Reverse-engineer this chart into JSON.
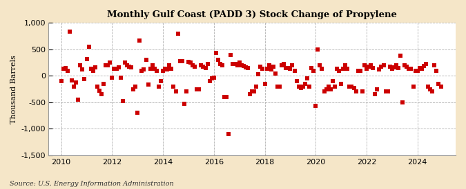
{
  "title": "Monthly Gulf Coast (PADD 3) Stock Change of Propylene",
  "ylabel": "Thousand Barrels",
  "source": "Source: U.S. Energy Information Administration",
  "background_color": "#f5e6c8",
  "plot_bg_color": "#ffffff",
  "marker_color": "#cc0000",
  "marker": "s",
  "marker_size": 4,
  "ylim": [
    -1500,
    1000
  ],
  "yticks": [
    -1500,
    -1000,
    -500,
    0,
    500,
    1000
  ],
  "xlim_start": 2009.5,
  "xlim_end": 2025.5,
  "xticks": [
    2010,
    2012,
    2014,
    2016,
    2018,
    2020,
    2022,
    2024
  ],
  "data": [
    [
      2010.0,
      -100
    ],
    [
      2010.083,
      130
    ],
    [
      2010.167,
      150
    ],
    [
      2010.25,
      100
    ],
    [
      2010.333,
      830
    ],
    [
      2010.417,
      -80
    ],
    [
      2010.5,
      -200
    ],
    [
      2010.583,
      -130
    ],
    [
      2010.667,
      -450
    ],
    [
      2010.75,
      200
    ],
    [
      2010.833,
      120
    ],
    [
      2010.917,
      -60
    ],
    [
      2011.0,
      310
    ],
    [
      2011.083,
      550
    ],
    [
      2011.167,
      130
    ],
    [
      2011.25,
      100
    ],
    [
      2011.333,
      160
    ],
    [
      2011.417,
      -200
    ],
    [
      2011.5,
      -280
    ],
    [
      2011.583,
      -350
    ],
    [
      2011.667,
      -150
    ],
    [
      2011.75,
      200
    ],
    [
      2011.833,
      200
    ],
    [
      2011.917,
      250
    ],
    [
      2012.0,
      -30
    ],
    [
      2012.083,
      130
    ],
    [
      2012.167,
      130
    ],
    [
      2012.25,
      160
    ],
    [
      2012.333,
      -40
    ],
    [
      2012.417,
      -470
    ],
    [
      2012.5,
      250
    ],
    [
      2012.583,
      200
    ],
    [
      2012.667,
      170
    ],
    [
      2012.75,
      160
    ],
    [
      2012.833,
      -250
    ],
    [
      2012.917,
      -200
    ],
    [
      2013.0,
      -700
    ],
    [
      2013.083,
      670
    ],
    [
      2013.167,
      100
    ],
    [
      2013.25,
      120
    ],
    [
      2013.333,
      300
    ],
    [
      2013.417,
      -170
    ],
    [
      2013.5,
      130
    ],
    [
      2013.583,
      200
    ],
    [
      2013.667,
      130
    ],
    [
      2013.75,
      100
    ],
    [
      2013.833,
      -200
    ],
    [
      2013.917,
      -100
    ],
    [
      2014.0,
      100
    ],
    [
      2014.083,
      130
    ],
    [
      2014.167,
      120
    ],
    [
      2014.25,
      200
    ],
    [
      2014.333,
      130
    ],
    [
      2014.417,
      -200
    ],
    [
      2014.5,
      -300
    ],
    [
      2014.583,
      800
    ],
    [
      2014.667,
      280
    ],
    [
      2014.75,
      280
    ],
    [
      2014.833,
      -530
    ],
    [
      2014.917,
      -300
    ],
    [
      2015.0,
      270
    ],
    [
      2015.083,
      250
    ],
    [
      2015.167,
      200
    ],
    [
      2015.25,
      170
    ],
    [
      2015.333,
      -250
    ],
    [
      2015.417,
      -250
    ],
    [
      2015.5,
      200
    ],
    [
      2015.583,
      170
    ],
    [
      2015.667,
      150
    ],
    [
      2015.75,
      230
    ],
    [
      2015.833,
      -100
    ],
    [
      2015.917,
      -50
    ],
    [
      2016.0,
      -30
    ],
    [
      2016.083,
      430
    ],
    [
      2016.167,
      300
    ],
    [
      2016.25,
      230
    ],
    [
      2016.333,
      200
    ],
    [
      2016.417,
      -400
    ],
    [
      2016.5,
      -400
    ],
    [
      2016.583,
      -1100
    ],
    [
      2016.667,
      400
    ],
    [
      2016.75,
      230
    ],
    [
      2016.833,
      220
    ],
    [
      2016.917,
      200
    ],
    [
      2017.0,
      250
    ],
    [
      2017.083,
      200
    ],
    [
      2017.167,
      180
    ],
    [
      2017.25,
      160
    ],
    [
      2017.333,
      150
    ],
    [
      2017.417,
      -350
    ],
    [
      2017.5,
      -300
    ],
    [
      2017.583,
      -300
    ],
    [
      2017.667,
      -200
    ],
    [
      2017.75,
      30
    ],
    [
      2017.833,
      170
    ],
    [
      2017.917,
      130
    ],
    [
      2018.0,
      -150
    ],
    [
      2018.083,
      130
    ],
    [
      2018.167,
      200
    ],
    [
      2018.25,
      120
    ],
    [
      2018.333,
      170
    ],
    [
      2018.417,
      50
    ],
    [
      2018.5,
      -200
    ],
    [
      2018.583,
      -200
    ],
    [
      2018.667,
      200
    ],
    [
      2018.75,
      230
    ],
    [
      2018.833,
      150
    ],
    [
      2018.917,
      150
    ],
    [
      2019.0,
      130
    ],
    [
      2019.083,
      200
    ],
    [
      2019.167,
      100
    ],
    [
      2019.25,
      -100
    ],
    [
      2019.333,
      -200
    ],
    [
      2019.417,
      -230
    ],
    [
      2019.5,
      -200
    ],
    [
      2019.583,
      -150
    ],
    [
      2019.667,
      -50
    ],
    [
      2019.75,
      -200
    ],
    [
      2019.833,
      150
    ],
    [
      2019.917,
      100
    ],
    [
      2020.0,
      -570
    ],
    [
      2020.083,
      500
    ],
    [
      2020.167,
      200
    ],
    [
      2020.25,
      130
    ],
    [
      2020.333,
      -300
    ],
    [
      2020.417,
      -250
    ],
    [
      2020.5,
      -200
    ],
    [
      2020.583,
      -250
    ],
    [
      2020.667,
      -100
    ],
    [
      2020.75,
      -200
    ],
    [
      2020.833,
      130
    ],
    [
      2020.917,
      100
    ],
    [
      2021.0,
      -150
    ],
    [
      2021.083,
      130
    ],
    [
      2021.167,
      200
    ],
    [
      2021.25,
      130
    ],
    [
      2021.333,
      -200
    ],
    [
      2021.417,
      -200
    ],
    [
      2021.5,
      -230
    ],
    [
      2021.583,
      -300
    ],
    [
      2021.667,
      100
    ],
    [
      2021.75,
      100
    ],
    [
      2021.833,
      -300
    ],
    [
      2021.917,
      200
    ],
    [
      2022.0,
      130
    ],
    [
      2022.083,
      170
    ],
    [
      2022.167,
      200
    ],
    [
      2022.25,
      150
    ],
    [
      2022.333,
      -350
    ],
    [
      2022.417,
      -250
    ],
    [
      2022.5,
      120
    ],
    [
      2022.583,
      170
    ],
    [
      2022.667,
      200
    ],
    [
      2022.75,
      -300
    ],
    [
      2022.833,
      -300
    ],
    [
      2022.917,
      170
    ],
    [
      2023.0,
      130
    ],
    [
      2023.083,
      160
    ],
    [
      2023.167,
      200
    ],
    [
      2023.25,
      150
    ],
    [
      2023.333,
      380
    ],
    [
      2023.417,
      -500
    ],
    [
      2023.5,
      200
    ],
    [
      2023.583,
      170
    ],
    [
      2023.667,
      130
    ],
    [
      2023.75,
      130
    ],
    [
      2023.833,
      -200
    ],
    [
      2023.917,
      100
    ],
    [
      2024.0,
      100
    ],
    [
      2024.083,
      150
    ],
    [
      2024.167,
      130
    ],
    [
      2024.25,
      180
    ],
    [
      2024.333,
      230
    ],
    [
      2024.417,
      -200
    ],
    [
      2024.5,
      -250
    ],
    [
      2024.583,
      -300
    ],
    [
      2024.667,
      200
    ],
    [
      2024.75,
      100
    ],
    [
      2024.833,
      -150
    ],
    [
      2024.917,
      -200
    ]
  ]
}
